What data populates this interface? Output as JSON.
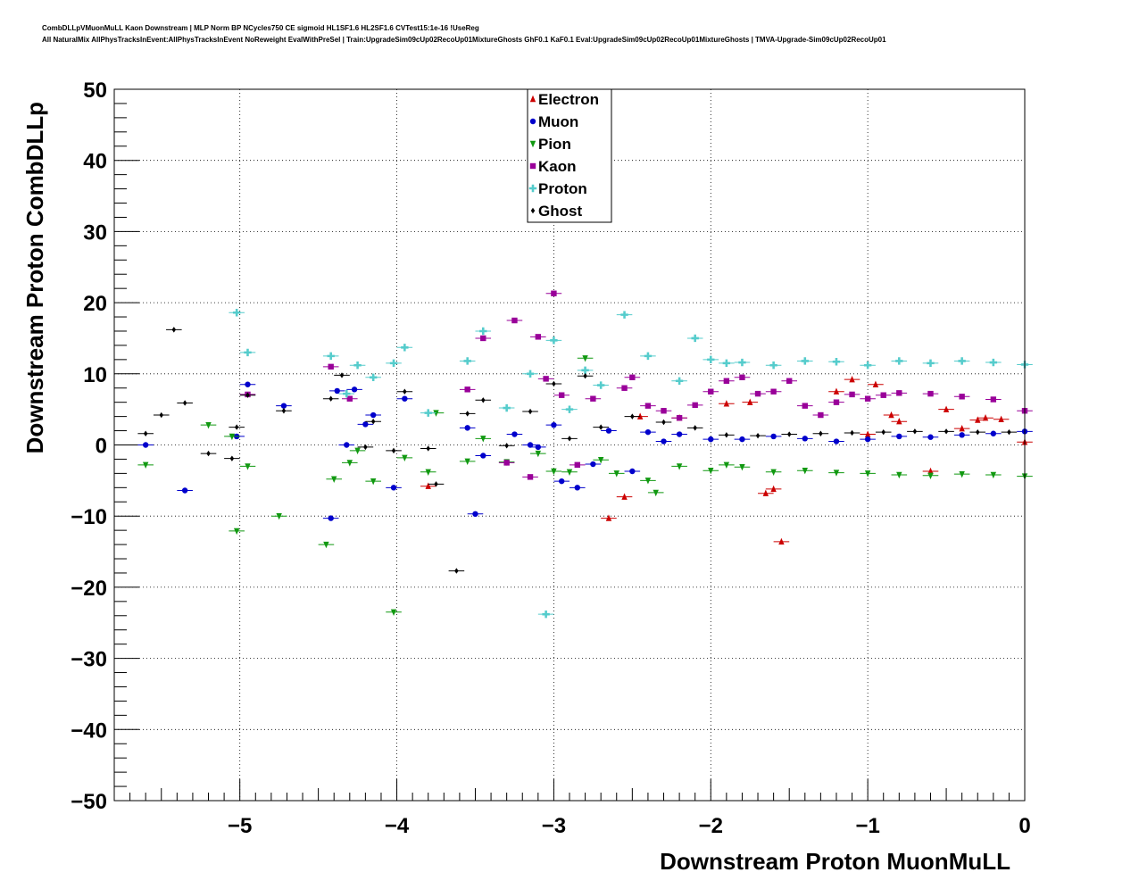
{
  "header": {
    "line1": "CombDLLpVMuonMuLL Kaon Downstream | MLP Norm BP NCycles750 CE sigmoid HL1SF1.6 HL2SF1.6 CVTest15:1e-16 !UseReg",
    "line2": "All NaturalMix AllPhysTracksInEvent:AllPhysTracksInEvent NoReweight EvalWithPreSel | Train:UpgradeSim09cUp02RecoUp01MixtureGhosts GhF0.1 KaF0.1 Eval:UpgradeSim09cUp02RecoUp01MixtureGhosts | TMVA-Upgrade-Sim09cUp02RecoUp01"
  },
  "chart_data": {
    "type": "scatter",
    "title": "",
    "xlabel": "Downstream Proton MuonMuLL",
    "ylabel": "Downstream Proton CombDLLp",
    "xlim": [
      -5.8,
      0
    ],
    "ylim": [
      -50,
      50
    ],
    "xticks": [
      -5,
      -4,
      -3,
      -2,
      -1,
      0
    ],
    "xtick_labels": [
      "−5",
      "−4",
      "−3",
      "−2",
      "−1",
      "0"
    ],
    "yticks": [
      -50,
      -40,
      -30,
      -20,
      -10,
      0,
      10,
      20,
      30,
      40,
      50
    ],
    "ytick_labels": [
      "−50",
      "−40",
      "−30",
      "−20",
      "−10",
      "0",
      "10",
      "20",
      "30",
      "40",
      "50"
    ],
    "grid": true,
    "legend_position": "top-center",
    "series": [
      {
        "name": "Electron",
        "color": "#cc0000",
        "marker": "triangle-up",
        "points": [
          [
            -3.8,
            -5.8
          ],
          [
            -2.65,
            -10.3
          ],
          [
            -2.55,
            -7.3
          ],
          [
            -2.45,
            4
          ],
          [
            -2.2,
            3.8
          ],
          [
            -1.9,
            5.8
          ],
          [
            -1.75,
            6
          ],
          [
            -1.65,
            -6.8
          ],
          [
            -1.6,
            -6.2
          ],
          [
            -1.55,
            -13.6
          ],
          [
            -1.2,
            7.5
          ],
          [
            -1.1,
            9.2
          ],
          [
            -1,
            1.5
          ],
          [
            -0.95,
            8.5
          ],
          [
            -0.85,
            4.2
          ],
          [
            -0.8,
            3.3
          ],
          [
            -0.6,
            -3.7
          ],
          [
            -0.5,
            5
          ],
          [
            -0.4,
            2.3
          ],
          [
            -0.3,
            3.5
          ],
          [
            -0.25,
            3.8
          ],
          [
            -0.15,
            3.6
          ],
          [
            0,
            0.4
          ]
        ]
      },
      {
        "name": "Muon",
        "color": "#0000cc",
        "marker": "circle",
        "points": [
          [
            -5.6,
            0
          ],
          [
            -5.35,
            -6.4
          ],
          [
            -5.02,
            1.2
          ],
          [
            -4.95,
            8.5
          ],
          [
            -4.72,
            5.5
          ],
          [
            -4.42,
            -10.3
          ],
          [
            -4.38,
            7.6
          ],
          [
            -4.32,
            0
          ],
          [
            -4.27,
            7.8
          ],
          [
            -4.2,
            2.9
          ],
          [
            -4.15,
            4.2
          ],
          [
            -4.02,
            -6
          ],
          [
            -3.95,
            6.5
          ],
          [
            -3.55,
            2.4
          ],
          [
            -3.5,
            -9.7
          ],
          [
            -3.45,
            -1.5
          ],
          [
            -3.25,
            1.5
          ],
          [
            -3.15,
            0
          ],
          [
            -3.1,
            -0.3
          ],
          [
            -3,
            2.8
          ],
          [
            -2.95,
            -5.1
          ],
          [
            -2.85,
            -6
          ],
          [
            -2.75,
            -2.7
          ],
          [
            -2.65,
            2
          ],
          [
            -2.5,
            -3.7
          ],
          [
            -2.4,
            1.8
          ],
          [
            -2.3,
            0.5
          ],
          [
            -2.2,
            1.5
          ],
          [
            -2,
            0.8
          ],
          [
            -1.8,
            0.8
          ],
          [
            -1.6,
            1.2
          ],
          [
            -1.4,
            0.9
          ],
          [
            -1.2,
            0.5
          ],
          [
            -1,
            0.8
          ],
          [
            -0.8,
            1.2
          ],
          [
            -0.6,
            1.1
          ],
          [
            -0.4,
            1.4
          ],
          [
            -0.2,
            1.6
          ],
          [
            0,
            1.9
          ]
        ]
      },
      {
        "name": "Pion",
        "color": "#119911",
        "marker": "triangle-down",
        "points": [
          [
            -5.6,
            -2.8
          ],
          [
            -5.2,
            2.8
          ],
          [
            -5.05,
            1.2
          ],
          [
            -5.02,
            -12.1
          ],
          [
            -4.95,
            -3
          ],
          [
            -4.75,
            -10
          ],
          [
            -4.45,
            -14
          ],
          [
            -4.4,
            -4.8
          ],
          [
            -4.3,
            -2.5
          ],
          [
            -4.25,
            -0.8
          ],
          [
            -4.15,
            -5.1
          ],
          [
            -4.02,
            -23.5
          ],
          [
            -3.95,
            -1.8
          ],
          [
            -3.8,
            -3.8
          ],
          [
            -3.75,
            4.5
          ],
          [
            -3.55,
            -2.3
          ],
          [
            -3.45,
            0.9
          ],
          [
            -3.3,
            -2.4
          ],
          [
            -3.1,
            -1.2
          ],
          [
            -3,
            -3.7
          ],
          [
            -2.9,
            -3.8
          ],
          [
            -2.8,
            12.2
          ],
          [
            -2.7,
            -2.1
          ],
          [
            -2.6,
            -4
          ],
          [
            -2.4,
            -5
          ],
          [
            -2.35,
            -6.7
          ],
          [
            -2.2,
            -3
          ],
          [
            -2,
            -3.6
          ],
          [
            -1.9,
            -2.8
          ],
          [
            -1.8,
            -3.1
          ],
          [
            -1.6,
            -3.8
          ],
          [
            -1.4,
            -3.6
          ],
          [
            -1.2,
            -3.9
          ],
          [
            -1,
            -4
          ],
          [
            -0.8,
            -4.2
          ],
          [
            -0.6,
            -4.3
          ],
          [
            -0.4,
            -4.1
          ],
          [
            -0.2,
            -4.2
          ],
          [
            0,
            -4.4
          ]
        ]
      },
      {
        "name": "Kaon",
        "color": "#990099",
        "marker": "square",
        "points": [
          [
            -4.95,
            7.1
          ],
          [
            -4.42,
            11
          ],
          [
            -4.3,
            6.5
          ],
          [
            -3.55,
            7.8
          ],
          [
            -3.45,
            15
          ],
          [
            -3.3,
            -2.5
          ],
          [
            -3.25,
            17.5
          ],
          [
            -3.15,
            -4.5
          ],
          [
            -3.1,
            15.2
          ],
          [
            -3.05,
            9.3
          ],
          [
            -3,
            21.3
          ],
          [
            -2.95,
            7
          ],
          [
            -2.85,
            -2.8
          ],
          [
            -2.75,
            6.5
          ],
          [
            -2.55,
            8
          ],
          [
            -2.5,
            9.5
          ],
          [
            -2.4,
            5.5
          ],
          [
            -2.3,
            4.8
          ],
          [
            -2.2,
            3.8
          ],
          [
            -2.1,
            5.6
          ],
          [
            -2,
            7.5
          ],
          [
            -1.9,
            9
          ],
          [
            -1.8,
            9.5
          ],
          [
            -1.7,
            7.2
          ],
          [
            -1.6,
            7.5
          ],
          [
            -1.5,
            9
          ],
          [
            -1.4,
            5.5
          ],
          [
            -1.3,
            4.2
          ],
          [
            -1.2,
            6
          ],
          [
            -1.1,
            7.1
          ],
          [
            -1,
            6.5
          ],
          [
            -0.9,
            7
          ],
          [
            -0.8,
            7.3
          ],
          [
            -0.6,
            7.2
          ],
          [
            -0.4,
            6.8
          ],
          [
            -0.2,
            6.4
          ],
          [
            0,
            4.8
          ]
        ]
      },
      {
        "name": "Proton",
        "color": "#55cccc",
        "marker": "cross",
        "points": [
          [
            -5.02,
            18.6
          ],
          [
            -4.95,
            13
          ],
          [
            -4.42,
            12.5
          ],
          [
            -4.32,
            7.2
          ],
          [
            -4.25,
            11.2
          ],
          [
            -4.15,
            9.5
          ],
          [
            -4.02,
            11.5
          ],
          [
            -3.95,
            13.7
          ],
          [
            -3.8,
            4.5
          ],
          [
            -3.55,
            11.8
          ],
          [
            -3.45,
            16
          ],
          [
            -3.3,
            5.2
          ],
          [
            -3.15,
            10
          ],
          [
            -3.05,
            -23.8
          ],
          [
            -3,
            14.7
          ],
          [
            -2.9,
            5
          ],
          [
            -2.8,
            10.5
          ],
          [
            -2.7,
            8.4
          ],
          [
            -2.55,
            18.3
          ],
          [
            -2.4,
            12.5
          ],
          [
            -2.2,
            9
          ],
          [
            -2.1,
            15
          ],
          [
            -2,
            12
          ],
          [
            -1.9,
            11.5
          ],
          [
            -1.8,
            11.6
          ],
          [
            -1.6,
            11.2
          ],
          [
            -1.4,
            11.8
          ],
          [
            -1.2,
            11.7
          ],
          [
            -1,
            11.2
          ],
          [
            -0.8,
            11.8
          ],
          [
            -0.6,
            11.5
          ],
          [
            -0.4,
            11.8
          ],
          [
            -0.2,
            11.6
          ],
          [
            0,
            11.3
          ]
        ]
      },
      {
        "name": "Ghost",
        "color": "#000000",
        "marker": "diamond",
        "points": [
          [
            -5.6,
            1.6
          ],
          [
            -5.5,
            4.2
          ],
          [
            -5.42,
            16.2
          ],
          [
            -5.35,
            5.9
          ],
          [
            -5.2,
            -1.2
          ],
          [
            -5.05,
            -1.9
          ],
          [
            -5.02,
            2.5
          ],
          [
            -4.95,
            7
          ],
          [
            -4.72,
            4.8
          ],
          [
            -4.42,
            6.5
          ],
          [
            -4.35,
            9.8
          ],
          [
            -4.2,
            -0.3
          ],
          [
            -4.15,
            3.3
          ],
          [
            -4.02,
            -0.8
          ],
          [
            -3.95,
            7.5
          ],
          [
            -3.8,
            -0.5
          ],
          [
            -3.75,
            -5.5
          ],
          [
            -3.62,
            -17.7
          ],
          [
            -3.55,
            4.4
          ],
          [
            -3.45,
            6.3
          ],
          [
            -3.3,
            -0.1
          ],
          [
            -3.15,
            4.7
          ],
          [
            -3,
            8.6
          ],
          [
            -2.9,
            0.9
          ],
          [
            -2.8,
            9.7
          ],
          [
            -2.7,
            2.5
          ],
          [
            -2.5,
            4
          ],
          [
            -2.3,
            3.2
          ],
          [
            -2.1,
            2.4
          ],
          [
            -1.9,
            1.4
          ],
          [
            -1.7,
            1.3
          ],
          [
            -1.5,
            1.5
          ],
          [
            -1.3,
            1.6
          ],
          [
            -1.1,
            1.7
          ],
          [
            -0.9,
            1.8
          ],
          [
            -0.7,
            1.9
          ],
          [
            -0.5,
            1.9
          ],
          [
            -0.3,
            1.8
          ],
          [
            -0.1,
            1.8
          ]
        ]
      }
    ]
  }
}
